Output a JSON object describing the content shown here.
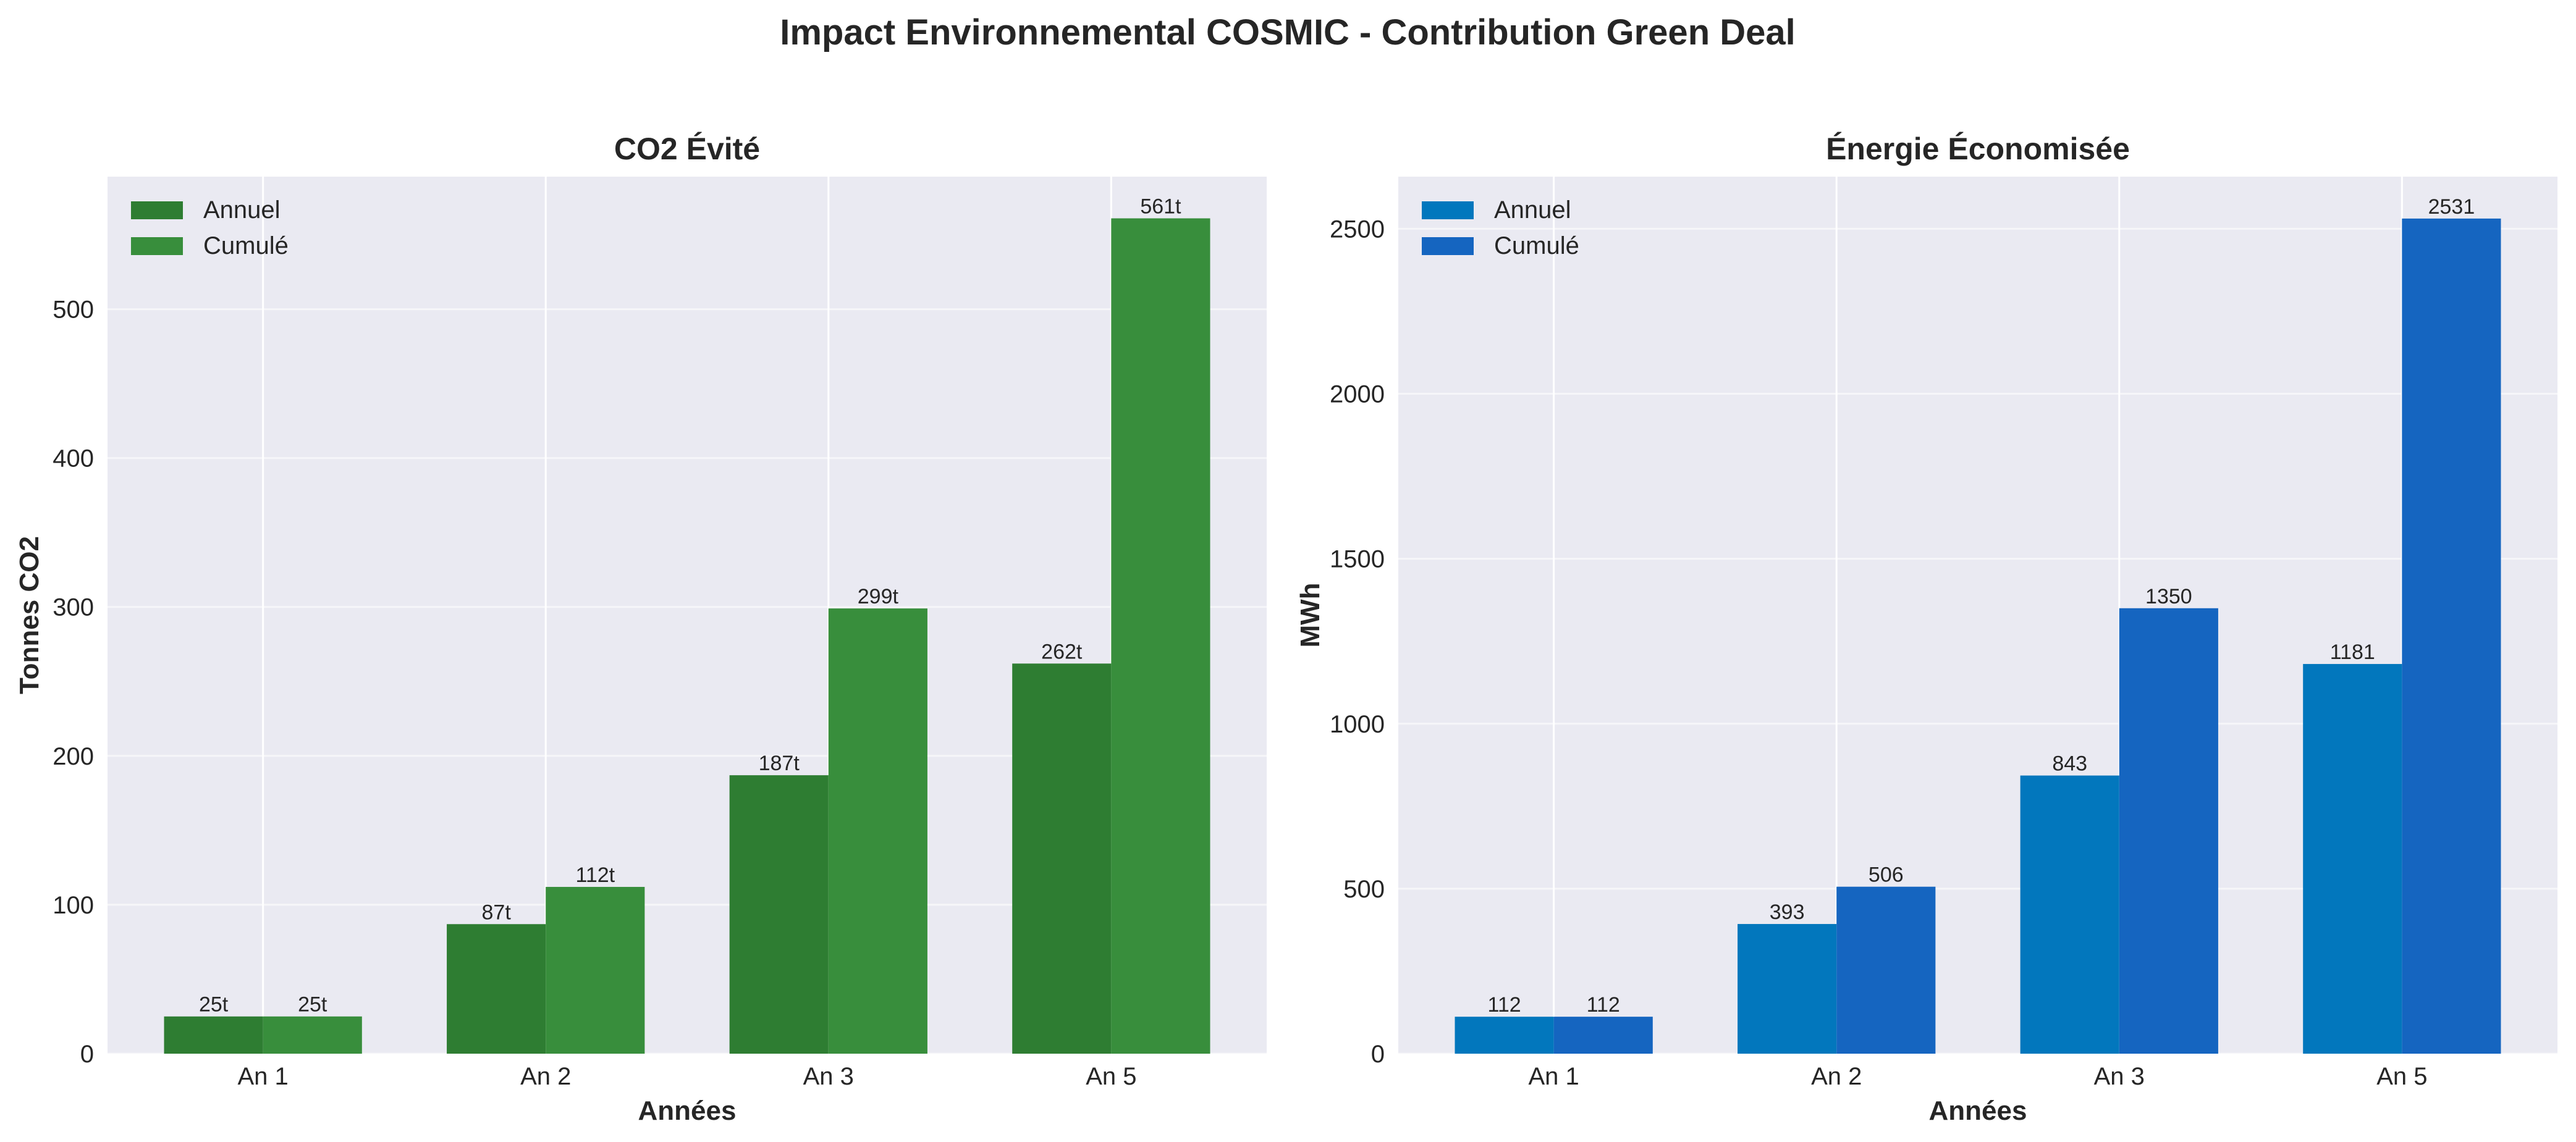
{
  "figure_title": "Impact Environnemental COSMIC - Contribution Green Deal",
  "chart_data": [
    {
      "type": "bar",
      "title": "CO2 Évité",
      "xlabel": "Années",
      "ylabel": "Tonnes CO2",
      "categories": [
        "An 1",
        "An 2",
        "An 3",
        "An 5"
      ],
      "ylim": [
        0,
        589
      ],
      "yticks": [
        0,
        100,
        200,
        300,
        400,
        500
      ],
      "grid": true,
      "legend_position": "top-left",
      "label_suffix": "t",
      "series": [
        {
          "name": "Annuel",
          "color": "#2e7d32",
          "values": [
            25,
            87,
            187,
            262
          ]
        },
        {
          "name": "Cumulé",
          "color": "#388e3c",
          "values": [
            25,
            112,
            299,
            561
          ]
        }
      ]
    },
    {
      "type": "bar",
      "title": "Énergie Économisée",
      "xlabel": "Années",
      "ylabel": "MWh",
      "categories": [
        "An 1",
        "An 2",
        "An 3",
        "An 5"
      ],
      "ylim": [
        0,
        2658
      ],
      "yticks": [
        0,
        500,
        1000,
        1500,
        2000,
        2500
      ],
      "grid": true,
      "legend_position": "top-left",
      "label_suffix": "",
      "series": [
        {
          "name": "Annuel",
          "color": "#0277bd",
          "values": [
            112,
            393,
            843,
            1181
          ]
        },
        {
          "name": "Cumulé",
          "color": "#1565c0",
          "values": [
            112,
            506,
            1350,
            2531
          ]
        }
      ]
    }
  ],
  "colors": {
    "plot_background": "#eaeaf2",
    "grid": "#ffffff",
    "text": "#262626"
  }
}
